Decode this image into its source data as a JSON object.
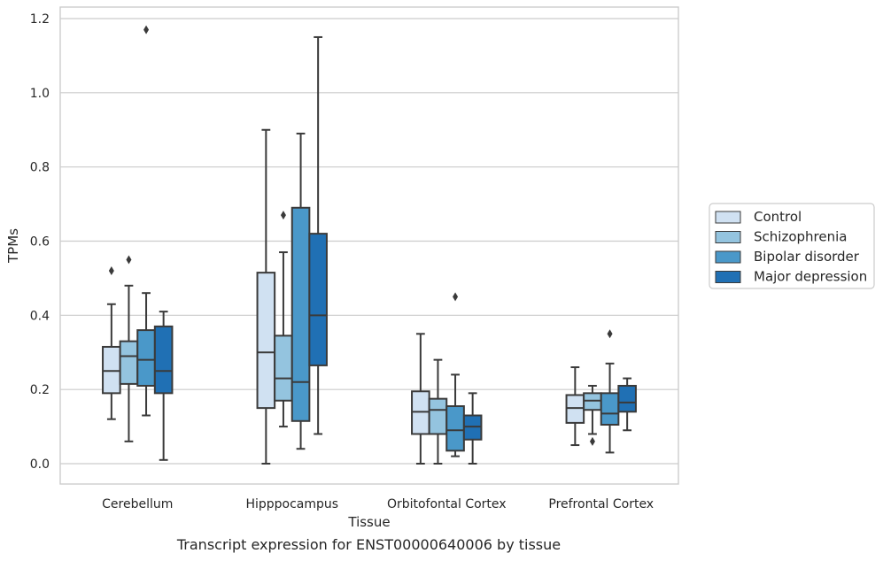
{
  "caption": "Transcript expression for ENST00000640006 by tissue",
  "colors": {
    "Control": "#d0e1f2",
    "Schizophrenia": "#94c4df",
    "Bipolar disorder": "#4a98c9",
    "Major depression": "#2070b4",
    "line": "#3a3a3a",
    "grid": "#cccccc",
    "frame": "#cccccc"
  },
  "chart_data": {
    "type": "box",
    "xlabel": "Tissue",
    "ylabel": "TPMs",
    "ylim": [
      -0.055,
      1.235
    ],
    "yticks": [
      0.0,
      0.2,
      0.4,
      0.6,
      0.8,
      1.0,
      1.2
    ],
    "ytick_labels": [
      "0.0",
      "0.2",
      "0.4",
      "0.6",
      "0.8",
      "1.0",
      "1.2"
    ],
    "grid": "horizontal",
    "legend_position": "right",
    "categories": [
      "Cerebellum",
      "Hipppocampus",
      "Orbitofontal Cortex",
      "Prefrontal Cortex"
    ],
    "series": [
      {
        "name": "Control",
        "boxes": [
          {
            "whislo": 0.12,
            "q1": 0.19,
            "med": 0.25,
            "q3": 0.315,
            "whishi": 0.43,
            "fliers": [
              0.52
            ]
          },
          {
            "whislo": 0.0,
            "q1": 0.15,
            "med": 0.3,
            "q3": 0.515,
            "whishi": 0.9,
            "fliers": []
          },
          {
            "whislo": 0.0,
            "q1": 0.08,
            "med": 0.14,
            "q3": 0.195,
            "whishi": 0.35,
            "fliers": []
          },
          {
            "whislo": 0.05,
            "q1": 0.11,
            "med": 0.15,
            "q3": 0.185,
            "whishi": 0.26,
            "fliers": []
          }
        ]
      },
      {
        "name": "Schizophrenia",
        "boxes": [
          {
            "whislo": 0.06,
            "q1": 0.215,
            "med": 0.29,
            "q3": 0.33,
            "whishi": 0.48,
            "fliers": [
              0.55
            ]
          },
          {
            "whislo": 0.1,
            "q1": 0.17,
            "med": 0.23,
            "q3": 0.345,
            "whishi": 0.57,
            "fliers": [
              0.67
            ]
          },
          {
            "whislo": 0.0,
            "q1": 0.08,
            "med": 0.145,
            "q3": 0.175,
            "whishi": 0.28,
            "fliers": []
          },
          {
            "whislo": 0.08,
            "q1": 0.145,
            "med": 0.17,
            "q3": 0.19,
            "whishi": 0.21,
            "fliers": [
              0.06
            ]
          }
        ]
      },
      {
        "name": "Bipolar disorder",
        "boxes": [
          {
            "whislo": 0.13,
            "q1": 0.21,
            "med": 0.28,
            "q3": 0.36,
            "whishi": 0.46,
            "fliers": [
              1.17
            ]
          },
          {
            "whislo": 0.04,
            "q1": 0.115,
            "med": 0.22,
            "q3": 0.69,
            "whishi": 0.89,
            "fliers": []
          },
          {
            "whislo": 0.02,
            "q1": 0.035,
            "med": 0.09,
            "q3": 0.155,
            "whishi": 0.24,
            "fliers": [
              0.45
            ]
          },
          {
            "whislo": 0.03,
            "q1": 0.105,
            "med": 0.135,
            "q3": 0.19,
            "whishi": 0.27,
            "fliers": [
              0.35
            ]
          }
        ]
      },
      {
        "name": "Major depression",
        "boxes": [
          {
            "whislo": 0.01,
            "q1": 0.19,
            "med": 0.25,
            "q3": 0.37,
            "whishi": 0.41,
            "fliers": []
          },
          {
            "whislo": 0.08,
            "q1": 0.265,
            "med": 0.4,
            "q3": 0.62,
            "whishi": 1.15,
            "fliers": []
          },
          {
            "whislo": 0.0,
            "q1": 0.065,
            "med": 0.1,
            "q3": 0.13,
            "whishi": 0.19,
            "fliers": []
          },
          {
            "whislo": 0.09,
            "q1": 0.14,
            "med": 0.165,
            "q3": 0.21,
            "whishi": 0.23,
            "fliers": []
          }
        ]
      }
    ]
  }
}
